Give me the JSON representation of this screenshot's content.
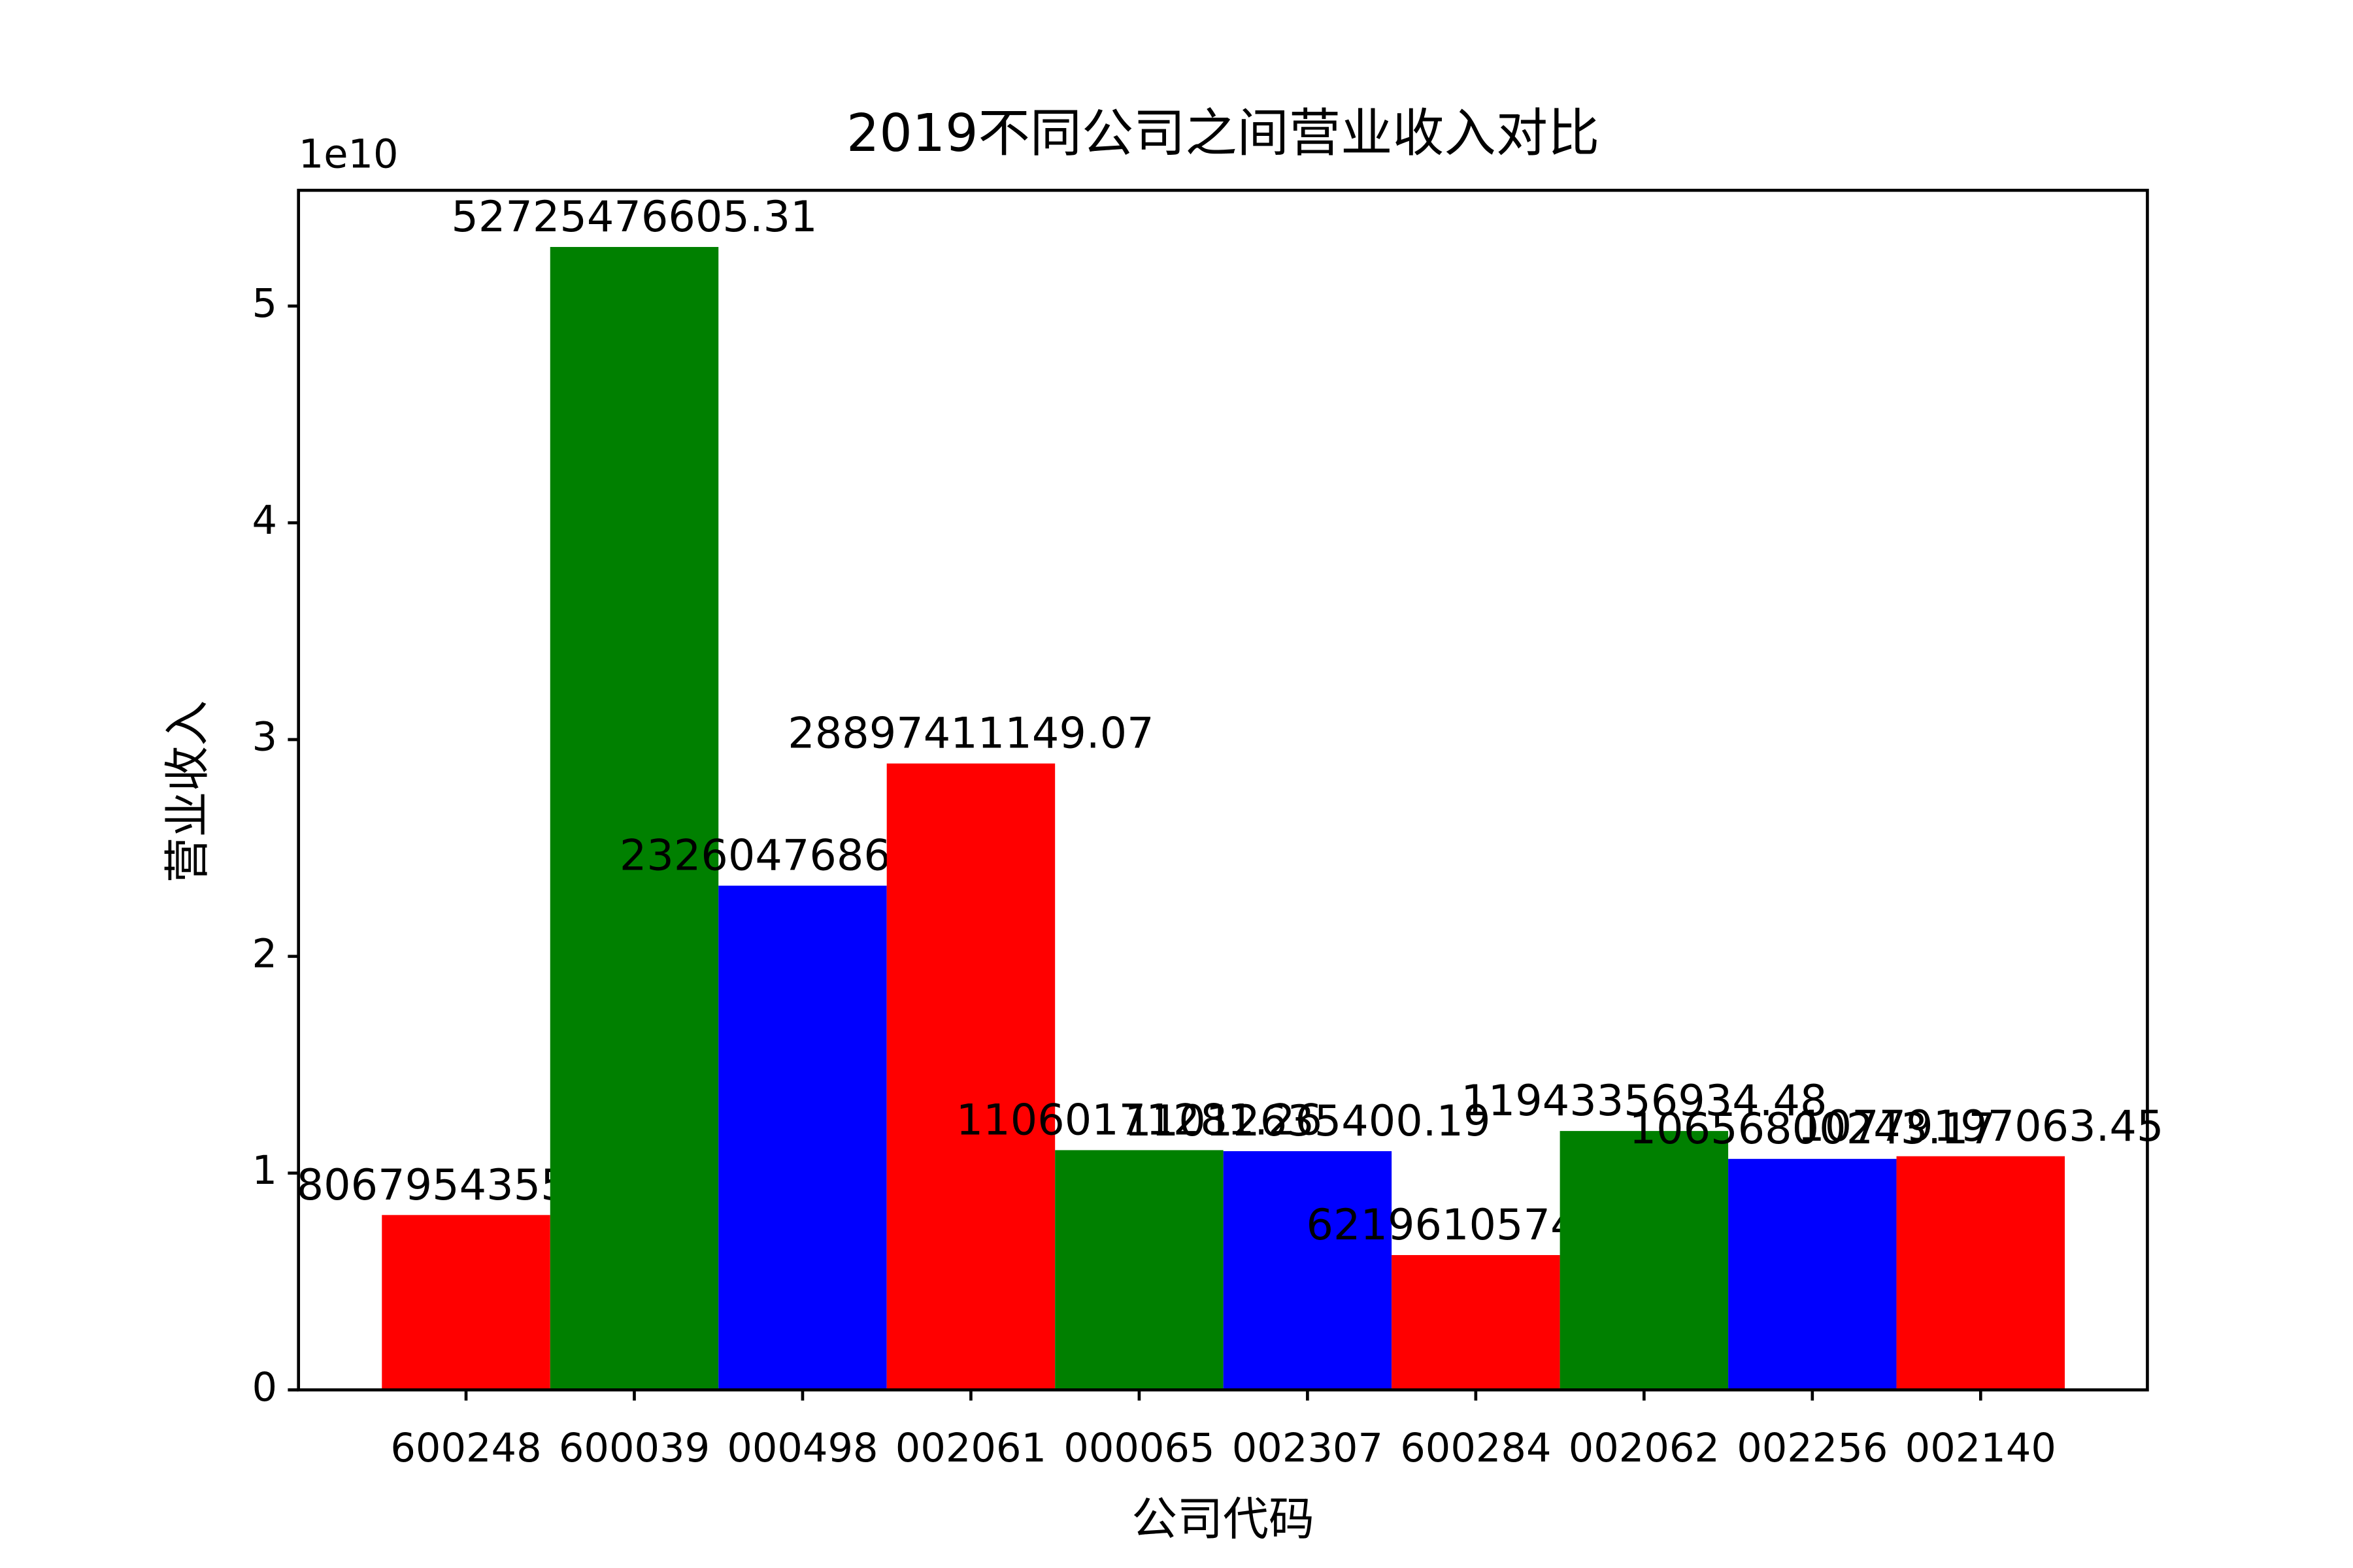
{
  "chart_data": {
    "type": "bar",
    "title": "2019不同公司之间营业收入对比",
    "x_label": "公司代码",
    "y_label": "营业收入",
    "y_offset_label": "1e10",
    "categories": [
      "600248",
      "600039",
      "000498",
      "002061",
      "000065",
      "002307",
      "600284",
      "002062",
      "002256",
      "002140"
    ],
    "values": [
      8067954355.12,
      52725476605.31,
      23260476869.93,
      28897411149.07,
      11060171281.26,
      11012635400.19,
      6219610574.93,
      11943356934.48,
      10656800243.17,
      10779197063.45
    ],
    "colors": [
      "#ff0000",
      "#008000",
      "#0000ff",
      "#ff0000",
      "#008000",
      "#0000ff",
      "#ff0000",
      "#008000",
      "#0000ff",
      "#ff0000"
    ],
    "ylim": [
      0,
      55340000000
    ],
    "yticks": [
      {
        "value": 0,
        "label": "0"
      },
      {
        "value": 10000000000,
        "label": "1"
      },
      {
        "value": 20000000000,
        "label": "2"
      },
      {
        "value": 30000000000,
        "label": "3"
      },
      {
        "value": 40000000000,
        "label": "4"
      },
      {
        "value": 50000000000,
        "label": "5"
      }
    ]
  }
}
